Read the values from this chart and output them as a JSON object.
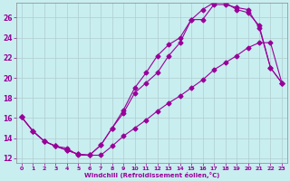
{
  "xlabel": "Windchill (Refroidissement éolien,°C)",
  "bg_color": "#c8eef0",
  "line_color": "#990099",
  "xlim": [
    -0.5,
    23.5
  ],
  "ylim": [
    11.5,
    27.5
  ],
  "xticks": [
    0,
    1,
    2,
    3,
    4,
    5,
    6,
    7,
    8,
    9,
    10,
    11,
    12,
    13,
    14,
    15,
    16,
    17,
    18,
    19,
    20,
    21,
    22,
    23
  ],
  "yticks": [
    12,
    14,
    16,
    18,
    20,
    22,
    24,
    26
  ],
  "grid_color": "#b0cdd0",
  "line1_x": [
    0,
    1,
    2,
    3,
    4,
    5,
    6,
    7,
    8,
    9,
    10,
    11,
    12,
    13,
    14,
    15,
    16,
    17,
    18,
    19,
    20,
    21,
    22,
    23
  ],
  "line1_y": [
    16.1,
    14.7,
    13.7,
    13.2,
    12.8,
    12.4,
    12.3,
    13.3,
    15.0,
    16.5,
    18.5,
    19.5,
    20.5,
    22.2,
    23.5,
    25.8,
    25.8,
    27.3,
    27.3,
    27.0,
    26.8,
    25.0,
    21.0,
    19.5
  ],
  "line2_x": [
    0,
    1,
    2,
    3,
    4,
    5,
    6,
    7,
    8,
    9,
    10,
    11,
    12,
    13,
    14,
    15,
    16,
    17,
    18,
    19,
    20,
    21,
    22,
    23
  ],
  "line2_y": [
    16.1,
    14.7,
    13.7,
    13.2,
    12.8,
    12.4,
    12.3,
    13.3,
    15.0,
    16.8,
    19.0,
    20.5,
    22.2,
    23.3,
    24.0,
    25.8,
    26.8,
    27.5,
    27.5,
    26.8,
    26.5,
    25.2,
    21.0,
    19.5
  ],
  "line3_x": [
    0,
    1,
    2,
    3,
    4,
    5,
    6,
    7,
    8,
    9,
    10,
    11,
    12,
    13,
    14,
    15,
    16,
    17,
    18,
    19,
    20,
    21,
    22,
    23
  ],
  "line3_y": [
    16.1,
    14.7,
    13.7,
    13.2,
    13.0,
    12.3,
    12.3,
    12.3,
    13.2,
    14.2,
    15.0,
    15.8,
    16.7,
    17.5,
    18.2,
    19.0,
    19.8,
    20.8,
    21.5,
    22.2,
    23.0,
    23.5,
    23.5,
    19.5
  ]
}
